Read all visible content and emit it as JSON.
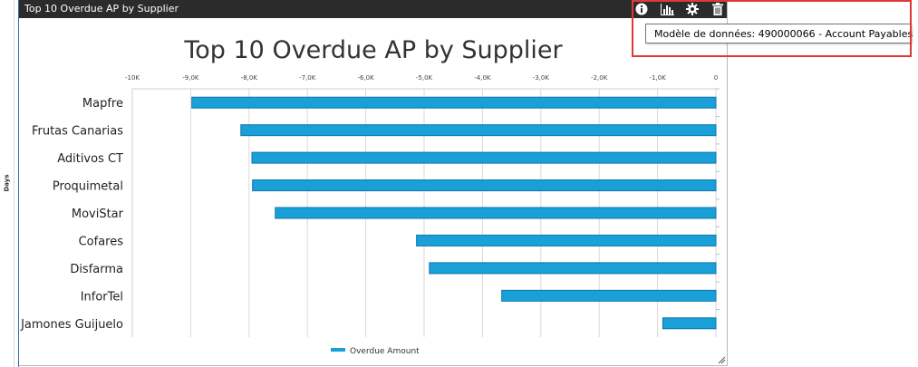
{
  "left_rail": {
    "label": "Days"
  },
  "panel": {
    "title": "Top 10 Overdue AP by Supplier",
    "toolbar": [
      {
        "name": "info-icon"
      },
      {
        "name": "chart-type-icon"
      },
      {
        "name": "gear-icon"
      },
      {
        "name": "trash-icon"
      }
    ]
  },
  "tooltip": {
    "text": "Modèle de données: 490000066 - Account Payables"
  },
  "colors": {
    "bar_fill": "#1aa0d8",
    "bar_stroke": "#0f77a8",
    "header_bg": "#2b2b2b",
    "highlight": "#e0373b"
  },
  "chart_data": {
    "type": "bar",
    "orientation": "horizontal",
    "title": "Top 10 Overdue AP by Supplier",
    "categories": [
      "Mapfre",
      "Frutas Canarias",
      "Aditivos CT",
      "Proquimetal",
      "MoviStar",
      "Cofares",
      "Disfarma",
      "InforTel",
      "Jamones Guijuelo"
    ],
    "series": [
      {
        "name": "Overdue Amount",
        "values": [
          -8980,
          -8140,
          -7950,
          -7940,
          -7550,
          -5130,
          -4910,
          -3670,
          -910
        ]
      }
    ],
    "xlim": [
      -10000,
      0
    ],
    "xticks": [
      "-10K",
      "-9,0K",
      "-8,0K",
      "-7,0K",
      "-6,0K",
      "-5,0K",
      "-4,0K",
      "-3,0K",
      "-2,0K",
      "-1,0K",
      "0"
    ],
    "grid": true,
    "legend": "bottom"
  }
}
